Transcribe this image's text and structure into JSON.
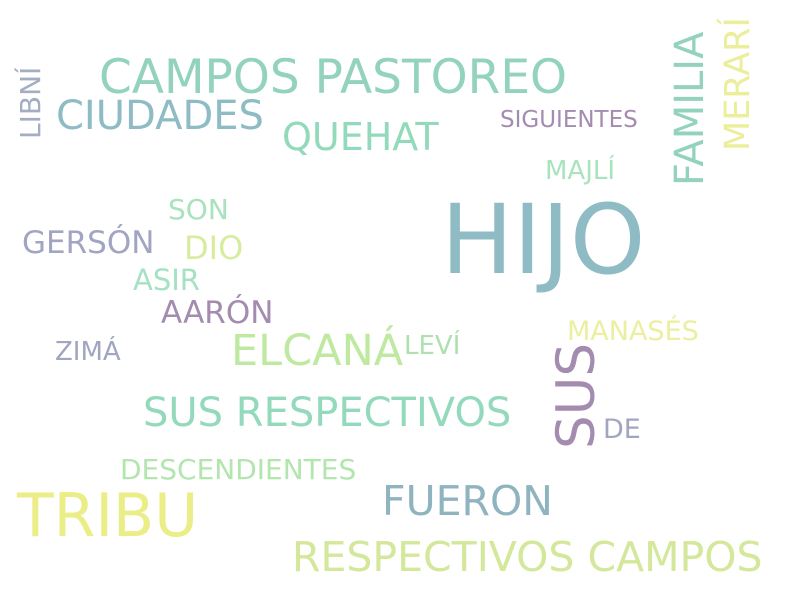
{
  "words": {
    "hijo": {
      "text": "HIJO",
      "color": "#8fbcc4"
    },
    "campos_pastoreo": {
      "text": "CAMPOS PASTOREO",
      "color": "#93d3bd"
    },
    "tribu": {
      "text": "TRIBU",
      "color": "#ebee86"
    },
    "respectivos_campos": {
      "text": "RESPECTIVOS CAMPOS",
      "color": "#d3e89a"
    },
    "sus_respectivos": {
      "text": "SUS RESPECTIVOS",
      "color": "#93d9bb"
    },
    "ciudades": {
      "text": "CIUDADES",
      "color": "#8fbcc4"
    },
    "familia": {
      "text": "FAMILIA",
      "color": "#93d3bd"
    },
    "sus": {
      "text": "SUS",
      "color": "#a48bb0"
    },
    "fueron": {
      "text": "FUERON",
      "color": "#8fb4c0"
    },
    "elcana": {
      "text": "ELCANÁ",
      "color": "#bfe9a0"
    },
    "quehat": {
      "text": "QUEHAT",
      "color": "#93d9bb"
    },
    "merari": {
      "text": "MERARÍ",
      "color": "#ebee9a"
    },
    "gerson": {
      "text": "GERSÓN",
      "color": "#a1a5c2"
    },
    "aaron": {
      "text": "AARÓN",
      "color": "#a48bb0"
    },
    "dio": {
      "text": "DIO",
      "color": "#d7ec9c"
    },
    "descendientes": {
      "text": "DESCENDIENTES",
      "color": "#b3e6ae"
    },
    "son": {
      "text": "SON",
      "color": "#a9e3bd"
    },
    "asir": {
      "text": "ASIR",
      "color": "#a5e2c3"
    },
    "manases": {
      "text": "MANASÉS",
      "color": "#ebef9f"
    },
    "libni": {
      "text": "LIBNÍ",
      "color": "#a4aec3"
    },
    "majli": {
      "text": "MAJLÍ",
      "color": "#a9e3bd"
    },
    "siguientes": {
      "text": "SIGUIENTES",
      "color": "#a48bb0"
    },
    "levi": {
      "text": "LEVÍ",
      "color": "#aee0b0"
    },
    "zima": {
      "text": "ZIMÁ",
      "color": "#a1a5c2"
    },
    "de": {
      "text": "DE",
      "color": "#a1a5c2"
    }
  }
}
